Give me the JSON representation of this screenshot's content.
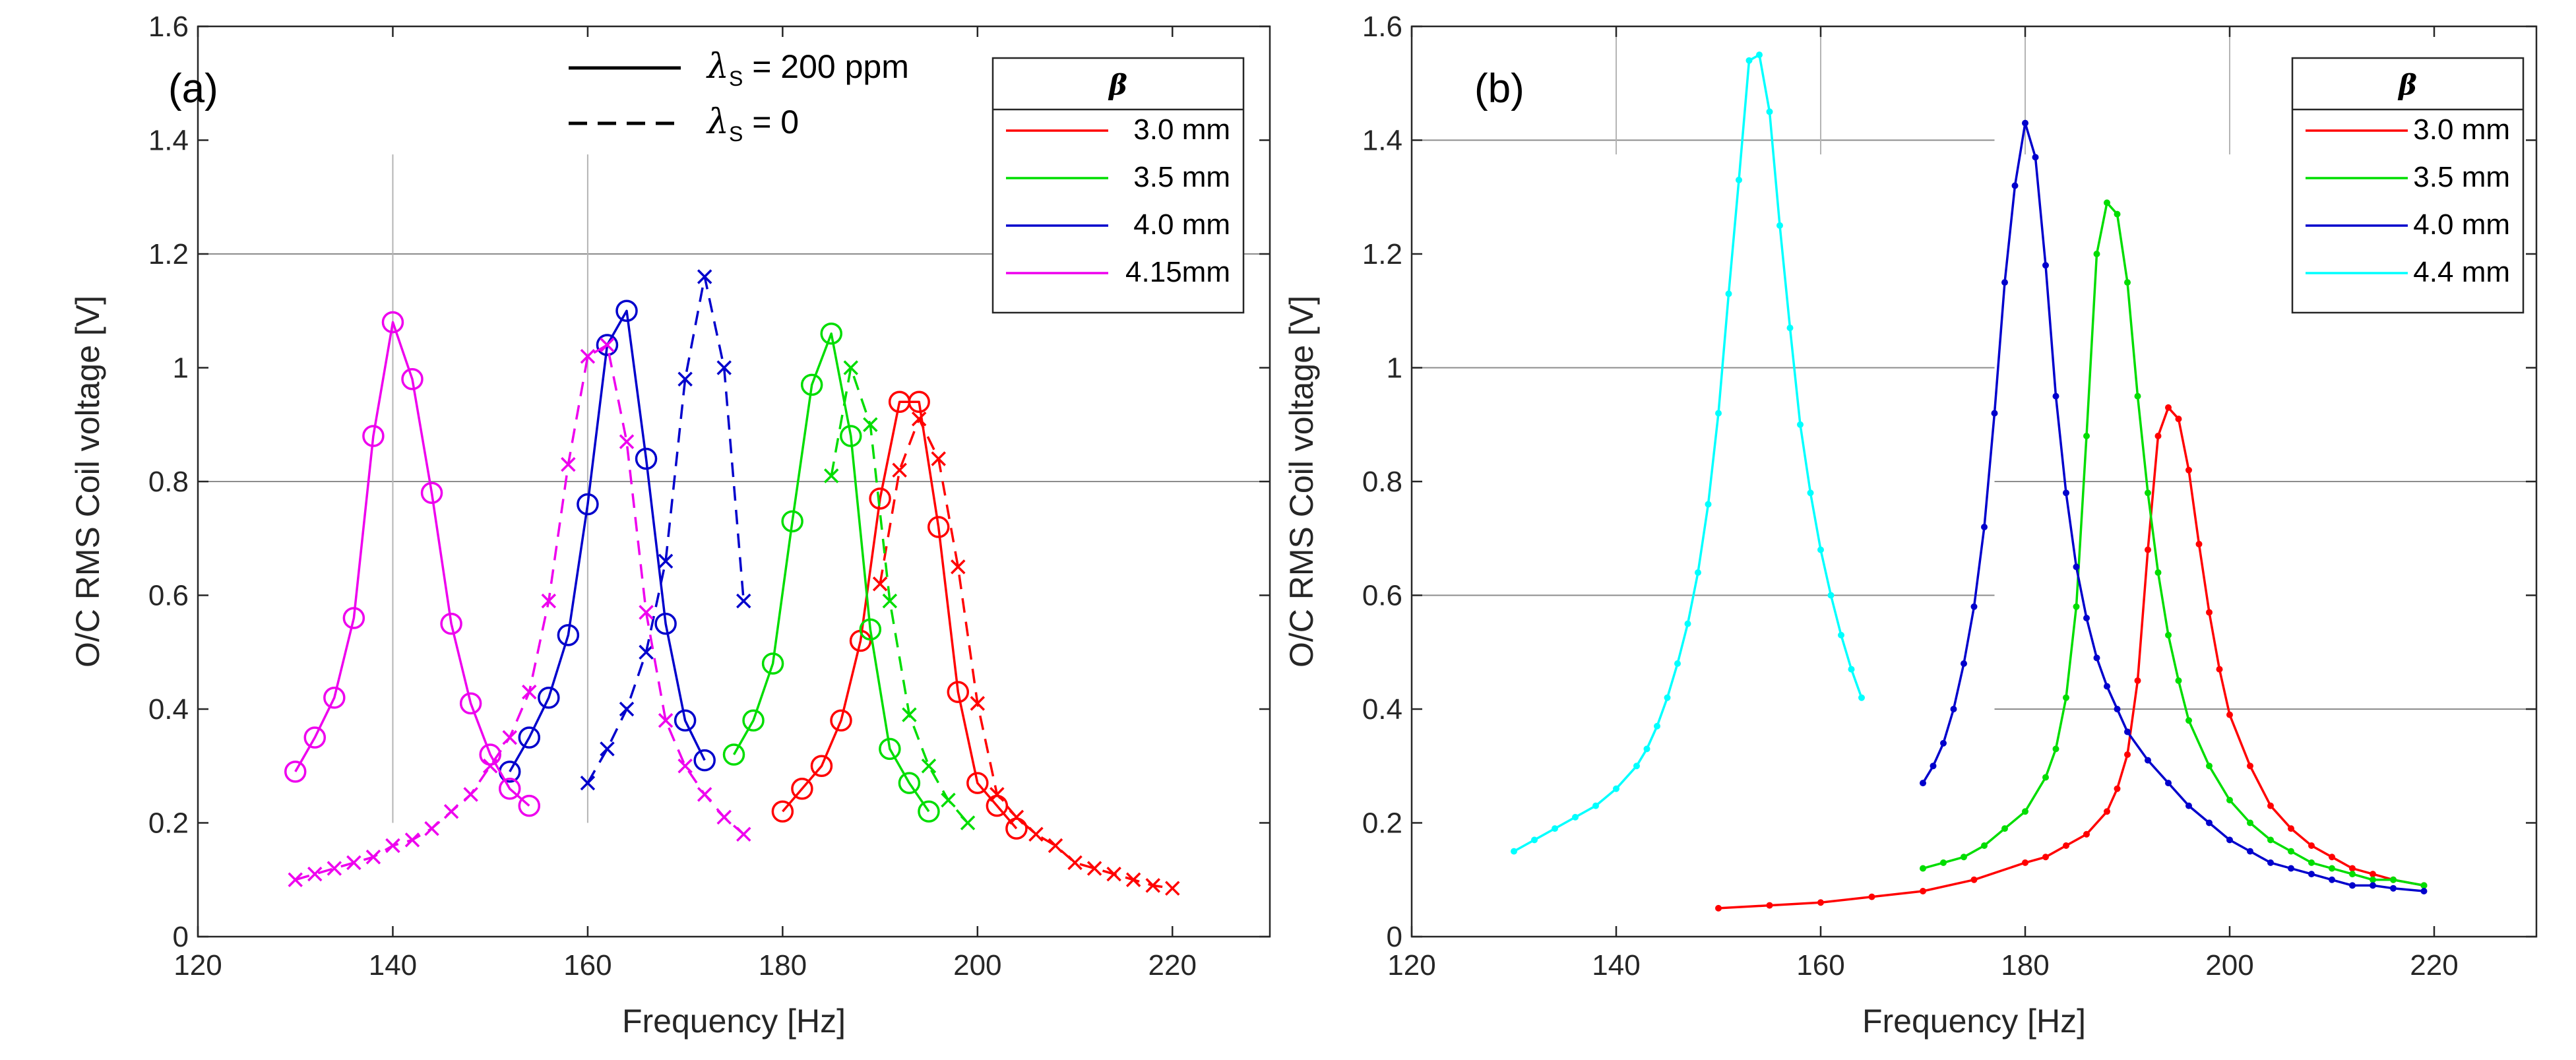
{
  "chart_data": [
    {
      "type": "line",
      "panel_label": "(a)",
      "xlabel": "Frequency [Hz]",
      "ylabel": "O/C RMS Coil voltage [V]",
      "xlim": [
        120,
        230
      ],
      "ylim": [
        0,
        1.6
      ],
      "xticks": [
        "120",
        "140",
        "160",
        "180",
        "200",
        "220"
      ],
      "yticks": [
        "0",
        "0.2",
        "0.4",
        "0.6",
        "0.8",
        "1",
        "1.2",
        "1.4",
        "1.6"
      ],
      "legend_title": "β",
      "line_style_legend": [
        {
          "symbol": "λ",
          "sub": "S",
          "text": " = 200 ppm",
          "style": "solid"
        },
        {
          "symbol": "λ",
          "sub": "S",
          "text": " = 0",
          "style": "dashed"
        }
      ],
      "series": [
        {
          "name": "3.0 mm",
          "color": "#ff0000",
          "style": "solid",
          "marker": "circle",
          "x": [
            180,
            182,
            184,
            186,
            188,
            190,
            192,
            194,
            196,
            198,
            200,
            202,
            204
          ],
          "y": [
            0.22,
            0.26,
            0.3,
            0.38,
            0.52,
            0.77,
            0.94,
            0.94,
            0.72,
            0.43,
            0.27,
            0.23,
            0.19
          ]
        },
        {
          "name": "3.0 mm",
          "color": "#ff0000",
          "style": "dashed",
          "marker": "x",
          "x": [
            190,
            192,
            194,
            196,
            198,
            200,
            202,
            204,
            206,
            208,
            210,
            212,
            214,
            216,
            218,
            220
          ],
          "y": [
            0.62,
            0.82,
            0.91,
            0.84,
            0.65,
            0.41,
            0.25,
            0.21,
            0.18,
            0.16,
            0.13,
            0.12,
            0.11,
            0.1,
            0.09,
            0.085
          ]
        },
        {
          "name": "3.5 mm",
          "color": "#00dd00",
          "style": "solid",
          "marker": "circle",
          "x": [
            175,
            177,
            179,
            181,
            183,
            185,
            187,
            189,
            191,
            193,
            195
          ],
          "y": [
            0.32,
            0.38,
            0.48,
            0.73,
            0.97,
            1.06,
            0.88,
            0.54,
            0.33,
            0.27,
            0.22
          ]
        },
        {
          "name": "3.5 mm",
          "color": "#00dd00",
          "style": "dashed",
          "marker": "x",
          "x": [
            185,
            187,
            189,
            191,
            193,
            195,
            197,
            199
          ],
          "y": [
            0.81,
            1.0,
            0.9,
            0.59,
            0.39,
            0.3,
            0.24,
            0.2
          ]
        },
        {
          "name": "4.0 mm",
          "color": "#0000cc",
          "style": "solid",
          "marker": "circle",
          "x": [
            152,
            154,
            156,
            158,
            160,
            162,
            164,
            166,
            168,
            170,
            172
          ],
          "y": [
            0.29,
            0.35,
            0.42,
            0.53,
            0.76,
            1.04,
            1.1,
            0.84,
            0.55,
            0.38,
            0.31
          ]
        },
        {
          "name": "4.0 mm",
          "color": "#0000cc",
          "style": "dashed",
          "marker": "x",
          "x": [
            160,
            162,
            164,
            166,
            168,
            170,
            172,
            174,
            176
          ],
          "y": [
            0.27,
            0.33,
            0.4,
            0.5,
            0.66,
            0.98,
            1.16,
            1.0,
            0.59
          ]
        },
        {
          "name": "4.15mm",
          "color": "#ee00ee",
          "style": "solid",
          "marker": "circle",
          "x": [
            130,
            132,
            134,
            136,
            138,
            140,
            142,
            144,
            146,
            148,
            150,
            152,
            154
          ],
          "y": [
            0.29,
            0.35,
            0.42,
            0.56,
            0.88,
            1.08,
            0.98,
            0.78,
            0.55,
            0.41,
            0.32,
            0.26,
            0.23
          ]
        },
        {
          "name": "4.15mm",
          "color": "#ee00ee",
          "style": "dashed",
          "marker": "x",
          "x": [
            130,
            132,
            134,
            136,
            138,
            140,
            142,
            144,
            146,
            148,
            150,
            152,
            154,
            156,
            158,
            160,
            162,
            164,
            166,
            168,
            170,
            172,
            174,
            176
          ],
          "y": [
            0.1,
            0.11,
            0.12,
            0.13,
            0.14,
            0.16,
            0.17,
            0.19,
            0.22,
            0.25,
            0.3,
            0.35,
            0.43,
            0.59,
            0.83,
            1.02,
            1.04,
            0.87,
            0.57,
            0.38,
            0.3,
            0.25,
            0.21,
            0.18
          ]
        }
      ],
      "legend_entries": [
        {
          "label": "3.0 mm",
          "color": "#ff0000"
        },
        {
          "label": "3.5 mm",
          "color": "#00dd00"
        },
        {
          "label": "4.0 mm",
          "color": "#0000cc"
        },
        {
          "label": "4.15mm",
          "color": "#ee00ee"
        }
      ]
    },
    {
      "type": "line",
      "panel_label": "(b)",
      "xlabel": "Frequency [Hz]",
      "ylabel": "O/C RMS Coil voltage [V]",
      "xlim": [
        120,
        230
      ],
      "ylim": [
        0,
        1.6
      ],
      "xticks": [
        "120",
        "140",
        "160",
        "180",
        "200",
        "220"
      ],
      "yticks": [
        "0",
        "0.2",
        "0.4",
        "0.6",
        "0.8",
        "1",
        "1.2",
        "1.4",
        "1.6"
      ],
      "legend_title": "β",
      "series": [
        {
          "name": "3.0 mm",
          "color": "#ff0000",
          "style": "solid",
          "marker": "dot",
          "x": [
            150,
            155,
            160,
            165,
            170,
            175,
            180,
            182,
            184,
            186,
            188,
            189,
            190,
            191,
            192,
            193,
            194,
            195,
            196,
            197,
            198,
            199,
            200,
            202,
            204,
            206,
            208,
            210,
            212,
            214,
            216,
            219
          ],
          "y": [
            0.05,
            0.055,
            0.06,
            0.07,
            0.08,
            0.1,
            0.13,
            0.14,
            0.16,
            0.18,
            0.22,
            0.26,
            0.32,
            0.45,
            0.68,
            0.88,
            0.93,
            0.91,
            0.82,
            0.69,
            0.57,
            0.47,
            0.39,
            0.3,
            0.23,
            0.19,
            0.16,
            0.14,
            0.12,
            0.11,
            0.1,
            0.09
          ]
        },
        {
          "name": "3.5 mm",
          "color": "#00dd00",
          "style": "solid",
          "marker": "dot",
          "x": [
            170,
            172,
            174,
            176,
            178,
            180,
            182,
            183,
            184,
            185,
            186,
            187,
            188,
            189,
            190,
            191,
            192,
            193,
            194,
            195,
            196,
            198,
            200,
            202,
            204,
            206,
            208,
            210,
            212,
            214,
            216,
            219
          ],
          "y": [
            0.12,
            0.13,
            0.14,
            0.16,
            0.19,
            0.22,
            0.28,
            0.33,
            0.42,
            0.58,
            0.88,
            1.2,
            1.29,
            1.27,
            1.15,
            0.95,
            0.78,
            0.64,
            0.53,
            0.45,
            0.38,
            0.3,
            0.24,
            0.2,
            0.17,
            0.15,
            0.13,
            0.12,
            0.11,
            0.1,
            0.1,
            0.09
          ]
        },
        {
          "name": "4.0 mm",
          "color": "#0000cc",
          "style": "solid",
          "marker": "dot",
          "x": [
            170,
            171,
            172,
            173,
            174,
            175,
            176,
            177,
            178,
            179,
            180,
            181,
            182,
            183,
            184,
            185,
            186,
            187,
            188,
            189,
            190,
            192,
            194,
            196,
            198,
            200,
            202,
            204,
            206,
            208,
            210,
            212,
            214,
            216,
            219
          ],
          "y": [
            0.27,
            0.3,
            0.34,
            0.4,
            0.48,
            0.58,
            0.72,
            0.92,
            1.15,
            1.32,
            1.43,
            1.37,
            1.18,
            0.95,
            0.78,
            0.65,
            0.56,
            0.49,
            0.44,
            0.4,
            0.36,
            0.31,
            0.27,
            0.23,
            0.2,
            0.17,
            0.15,
            0.13,
            0.12,
            0.11,
            0.1,
            0.09,
            0.09,
            0.085,
            0.08
          ]
        },
        {
          "name": "4.4 mm",
          "color": "#00ffff",
          "style": "solid",
          "marker": "dot",
          "x": [
            130,
            132,
            134,
            136,
            138,
            140,
            142,
            143,
            144,
            145,
            146,
            147,
            148,
            149,
            150,
            151,
            152,
            153,
            154,
            155,
            156,
            157,
            158,
            159,
            160,
            161,
            162,
            163,
            164
          ],
          "y": [
            0.15,
            0.17,
            0.19,
            0.21,
            0.23,
            0.26,
            0.3,
            0.33,
            0.37,
            0.42,
            0.48,
            0.55,
            0.64,
            0.76,
            0.92,
            1.13,
            1.33,
            1.54,
            1.55,
            1.45,
            1.25,
            1.07,
            0.9,
            0.78,
            0.68,
            0.6,
            0.53,
            0.47,
            0.42
          ]
        }
      ],
      "legend_entries": [
        {
          "label": "3.0 mm",
          "color": "#ff0000"
        },
        {
          "label": "3.5 mm",
          "color": "#00dd00"
        },
        {
          "label": "4.0 mm",
          "color": "#0000cc"
        },
        {
          "label": "4.4 mm",
          "color": "#00ffff"
        }
      ]
    }
  ]
}
